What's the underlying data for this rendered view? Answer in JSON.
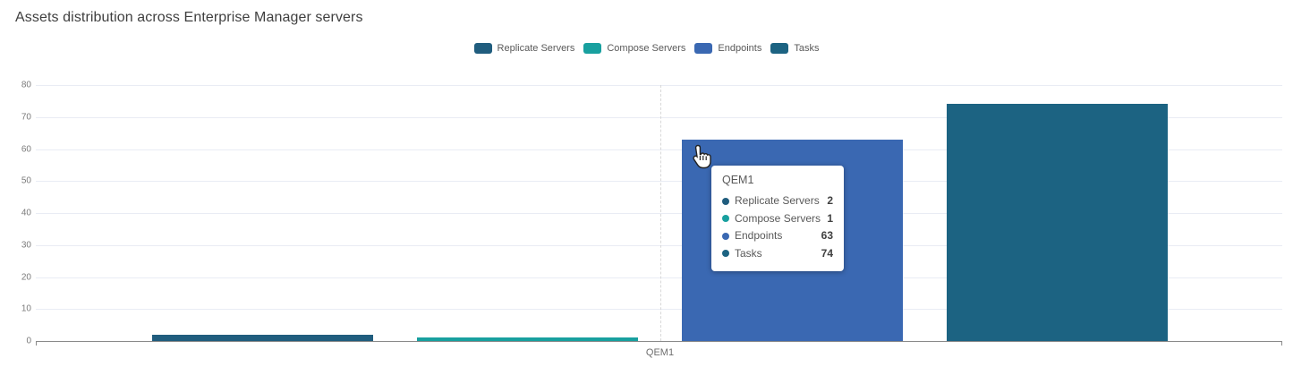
{
  "chart_data": {
    "type": "bar",
    "title": "Assets distribution across Enterprise Manager servers",
    "categories": [
      "QEM1"
    ],
    "series": [
      {
        "name": "Replicate Servers",
        "value": 2,
        "color": "#205d7e"
      },
      {
        "name": "Compose Servers",
        "value": 1,
        "color": "#18a09f"
      },
      {
        "name": "Endpoints",
        "value": 63,
        "color": "#3a68b2"
      },
      {
        "name": "Tasks",
        "value": 74,
        "color": "#1c6382"
      }
    ],
    "xlabel": "",
    "ylabel": "",
    "ylim": [
      0,
      80
    ],
    "yticks": [
      0,
      10,
      20,
      30,
      40,
      50,
      60,
      70,
      80
    ],
    "grid": true,
    "legend_position": "top"
  },
  "tooltip": {
    "header": "QEM1"
  }
}
